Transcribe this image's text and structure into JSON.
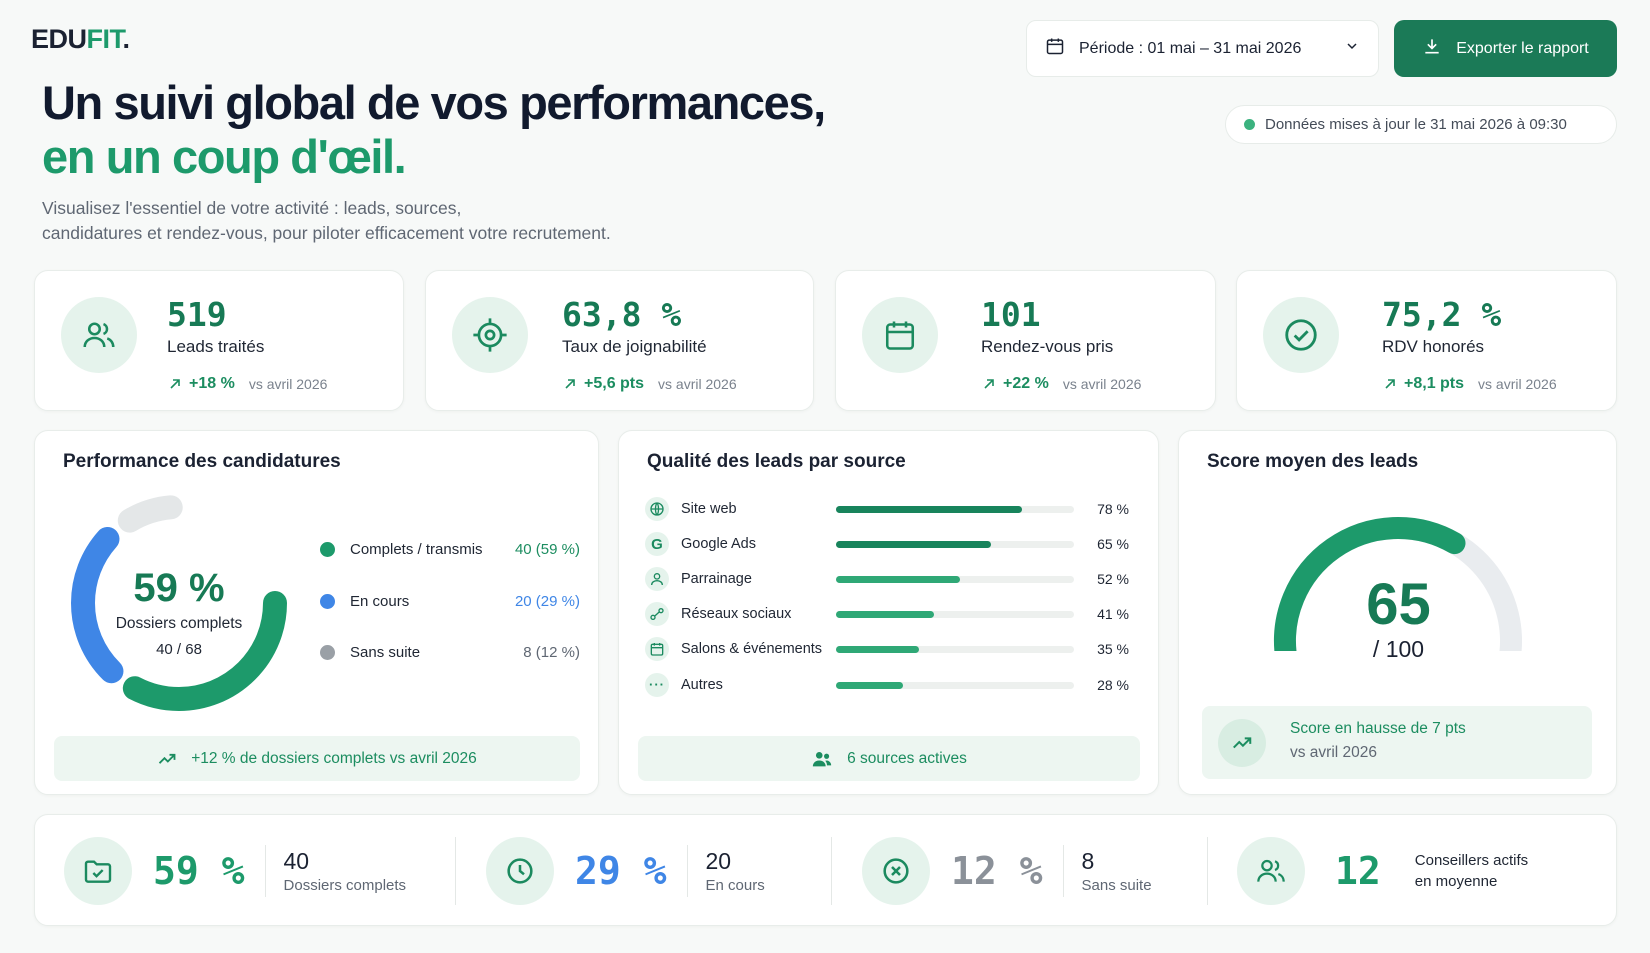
{
  "brand": {
    "logo_main": "EDU",
    "logo_accent": "FIT",
    "logo_dot": "."
  },
  "header": {
    "period_label": "Période : 01 mai – 31 mai 2026",
    "export_label": "Exporter le rapport",
    "updated_label": "Données mises à jour le 31 mai 2026 à 09:30",
    "headline_line1": "Un suivi global de vos performances,",
    "headline_line2": "en un coup d'œil.",
    "intro_line1": "Visualisez l'essentiel de votre activité : leads, sources,",
    "intro_line2": "candidatures et rendez-vous, pour piloter efficacement votre recrutement."
  },
  "kpis": [
    {
      "value": "519",
      "label": "Leads traités",
      "delta": "+18 %",
      "vs": "vs avril 2026",
      "icon": "users-icon"
    },
    {
      "value": "63,8 %",
      "label": "Taux de joignabilité",
      "delta": "+5,6 pts",
      "vs": "vs avril 2026",
      "icon": "target-icon"
    },
    {
      "value": "101",
      "label": "Rendez-vous pris",
      "delta": "+22 %",
      "vs": "vs avril 2026",
      "icon": "calendar-icon"
    },
    {
      "value": "75,2 %",
      "label": "RDV honorés",
      "delta": "+8,1 pts",
      "vs": "vs avril 2026",
      "icon": "check-circle-icon"
    }
  ],
  "candidatures": {
    "title": "Performance des candidatures",
    "center_value": "59 %",
    "center_label": "Dossiers complets",
    "center_ratio": "40 / 68",
    "legend": [
      {
        "name": "Complets / transmis",
        "value": "40 (59 %)",
        "color": "#1d9a6b"
      },
      {
        "name": "En cours",
        "value": "20 (29 %)",
        "color": "#3f86e6"
      },
      {
        "name": "Sans suite",
        "value": "8 (12 %)",
        "color": "#9aa0a6"
      }
    ],
    "segments": [
      {
        "name": "Complets / transmis",
        "share": 0.59,
        "color": "#1d9a6b"
      },
      {
        "name": "En cours",
        "share": 0.29,
        "color": "#3f86e6"
      },
      {
        "name": "Sans suite",
        "share": 0.12,
        "color": "#e4e7e8"
      }
    ],
    "footer": "+12 % de dossiers complets vs avril 2026"
  },
  "sources": {
    "title": "Qualité des leads par source",
    "items": [
      {
        "name": "Site web",
        "pct": "78 %",
        "value": 78,
        "icon": "globe-icon",
        "color": "#18845c"
      },
      {
        "name": "Google Ads",
        "pct": "65 %",
        "value": 65,
        "icon": "google-icon",
        "color": "#18845c"
      },
      {
        "name": "Parrainage",
        "pct": "52 %",
        "value": 52,
        "icon": "person-icon",
        "color": "#2fa876"
      },
      {
        "name": "Réseaux sociaux",
        "pct": "41 %",
        "value": 41,
        "icon": "share-icon",
        "color": "#2fa876"
      },
      {
        "name": "Salons & événements",
        "pct": "35 %",
        "value": 35,
        "icon": "calendar-icon",
        "color": "#2fa876"
      },
      {
        "name": "Autres",
        "pct": "28 %",
        "value": 28,
        "icon": "more-icon",
        "color": "#2fa876"
      }
    ],
    "footer": "6 sources actives"
  },
  "score": {
    "title": "Score moyen des leads",
    "value": "65",
    "max": "/ 100",
    "gauge_fraction": 0.65,
    "footer_line1": "Score en hausse de 7 pts",
    "footer_line2": "vs avril 2026"
  },
  "bottom": [
    {
      "big": "59 %",
      "num": "40",
      "text": "Dossiers complets",
      "color": "#1d9a6b",
      "icon": "folder-check-icon"
    },
    {
      "big": "29 %",
      "num": "20",
      "text": "En cours",
      "color": "#3f86e6",
      "icon": "clock-icon"
    },
    {
      "big": "12 %",
      "num": "8",
      "text": "Sans suite",
      "color": "#8b9199",
      "icon": "x-circle-icon"
    },
    {
      "big": "12",
      "text_line1": "Conseillers actifs",
      "text_line2": "en moyenne",
      "color": "#1d9a6b",
      "icon": "users-icon"
    }
  ]
}
